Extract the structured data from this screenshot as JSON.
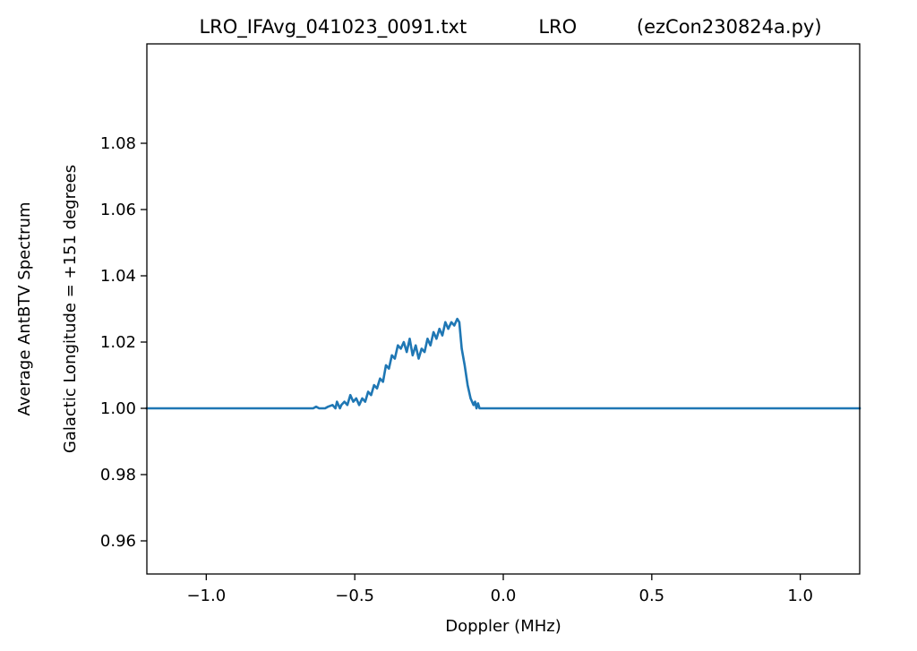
{
  "chart_data": {
    "type": "line",
    "title": "LRO_IFAvg_041023_0091.txt            LRO          (ezCon230824a.py)",
    "xlabel": "Doppler (MHz)",
    "ylabel_outer": "Average AntBTV Spectrum",
    "ylabel_inner": "Galactic Longitude = +151 degrees",
    "xlim": [
      -1.2,
      1.2
    ],
    "ylim": [
      0.95,
      1.11
    ],
    "xticks": [
      -1.0,
      -0.5,
      0.0,
      0.5,
      1.0
    ],
    "xtick_labels": [
      "−1.0",
      "−0.5",
      "0.0",
      "0.5",
      "1.0"
    ],
    "yticks": [
      0.96,
      0.98,
      1.0,
      1.02,
      1.04,
      1.06,
      1.08
    ],
    "ytick_labels": [
      "0.96",
      "0.98",
      "1.00",
      "1.02",
      "1.04",
      "1.06",
      "1.08"
    ],
    "grid": false,
    "line_color": "#1f77b4",
    "series": [
      {
        "x": [
          -1.2,
          -0.64,
          -0.63,
          -0.62,
          -0.6,
          -0.59,
          -0.575,
          -0.565,
          -0.56,
          -0.55,
          -0.545,
          -0.535,
          -0.525,
          -0.515,
          -0.505,
          -0.495,
          -0.485,
          -0.475,
          -0.465,
          -0.455,
          -0.445,
          -0.435,
          -0.425,
          -0.415,
          -0.405,
          -0.395,
          -0.385,
          -0.375,
          -0.365,
          -0.355,
          -0.345,
          -0.335,
          -0.325,
          -0.315,
          -0.305,
          -0.295,
          -0.285,
          -0.275,
          -0.265,
          -0.255,
          -0.245,
          -0.235,
          -0.225,
          -0.215,
          -0.205,
          -0.195,
          -0.185,
          -0.175,
          -0.165,
          -0.155,
          -0.148,
          -0.14,
          -0.13,
          -0.12,
          -0.11,
          -0.1,
          -0.095,
          -0.09,
          -0.085,
          -0.08,
          -0.075,
          1.2
        ],
        "y": [
          1.0,
          1.0,
          1.0005,
          1.0,
          1.0,
          1.0005,
          1.001,
          1.0,
          1.002,
          1.0,
          1.001,
          1.002,
          1.001,
          1.004,
          1.002,
          1.003,
          1.001,
          1.003,
          1.002,
          1.005,
          1.004,
          1.007,
          1.006,
          1.009,
          1.008,
          1.013,
          1.012,
          1.016,
          1.015,
          1.019,
          1.018,
          1.02,
          1.017,
          1.021,
          1.016,
          1.019,
          1.015,
          1.018,
          1.017,
          1.021,
          1.019,
          1.023,
          1.021,
          1.024,
          1.022,
          1.026,
          1.024,
          1.026,
          1.025,
          1.027,
          1.026,
          1.018,
          1.013,
          1.007,
          1.003,
          1.001,
          1.002,
          1.0,
          1.0015,
          1.0,
          1.0,
          1.0
        ]
      }
    ]
  }
}
